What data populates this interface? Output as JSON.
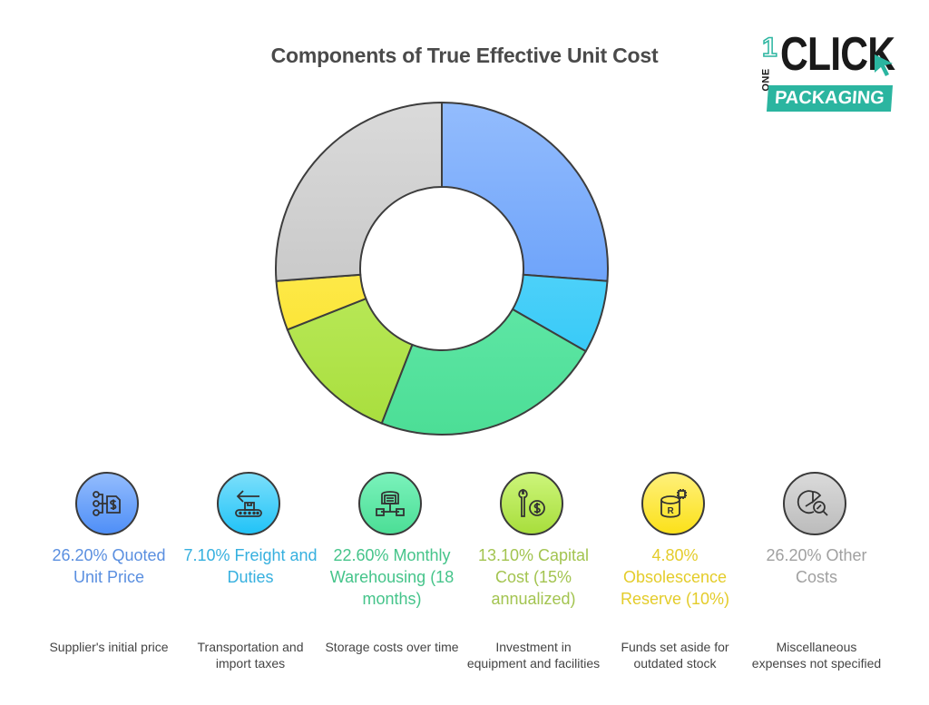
{
  "title": "Components of True Effective Unit Cost",
  "logo": {
    "one": "1",
    "one_text": "ONE",
    "click": "CLICK",
    "packaging": "PACKAGING",
    "accent_color": "#2bb5a0"
  },
  "chart_data": {
    "type": "pie",
    "variant": "donut",
    "title": "Components of True Effective Unit Cost",
    "categories": [
      "Quoted Unit Price",
      "Freight and Duties",
      "Monthly Warehousing (18 months)",
      "Capital Cost (15% annualized)",
      "Obsolescence Reserve (10%)",
      "Other Costs"
    ],
    "values": [
      26.2,
      7.1,
      22.6,
      13.1,
      4.8,
      26.2
    ],
    "unit": "%",
    "start_angle": "12 o'clock",
    "direction": "clockwise",
    "colors": [
      "#5b95f9",
      "#3fcbf7",
      "#5de3a0",
      "#b5e550",
      "#fde84a",
      "#c4c4c4"
    ],
    "legend_position": "bottom"
  },
  "items": [
    {
      "label": "26.20% Quoted Unit Price",
      "description": "Supplier's initial price",
      "icon": "price-flow-icon",
      "color": "#5a8fe0",
      "top": "#93bcfd",
      "bottom": "#4f8ff7"
    },
    {
      "label": "7.10% Freight and Duties",
      "description": "Transportation and import taxes",
      "icon": "conveyor-arrow-icon",
      "color": "#36b0df",
      "top": "#7bdffb",
      "bottom": "#22c3f7"
    },
    {
      "label": "22.60% Monthly Warehousing (18 months)",
      "description": "Storage costs over time",
      "icon": "warehouse-icon",
      "color": "#45c48a",
      "top": "#7af2bb",
      "bottom": "#4cde96"
    },
    {
      "label": "13.10% Capital Cost (15% annualized)",
      "description": "Investment in equipment and facilities",
      "icon": "wrench-dollar-icon",
      "color": "#a3c450",
      "top": "#ccf57a",
      "bottom": "#a8de3c"
    },
    {
      "label": "4.80% Obsolescence Reserve (10%)",
      "description": "Funds set aside for outdated stock",
      "icon": "database-reserve-icon",
      "color": "#e4cc2a",
      "top": "#fff07a",
      "bottom": "#fbe11a"
    },
    {
      "label": "26.20% Other Costs",
      "description": "Miscellaneous expenses not specified",
      "icon": "chart-search-icon",
      "color": "#a0a0a0",
      "top": "#dadada",
      "bottom": "#bcbcbc"
    }
  ]
}
